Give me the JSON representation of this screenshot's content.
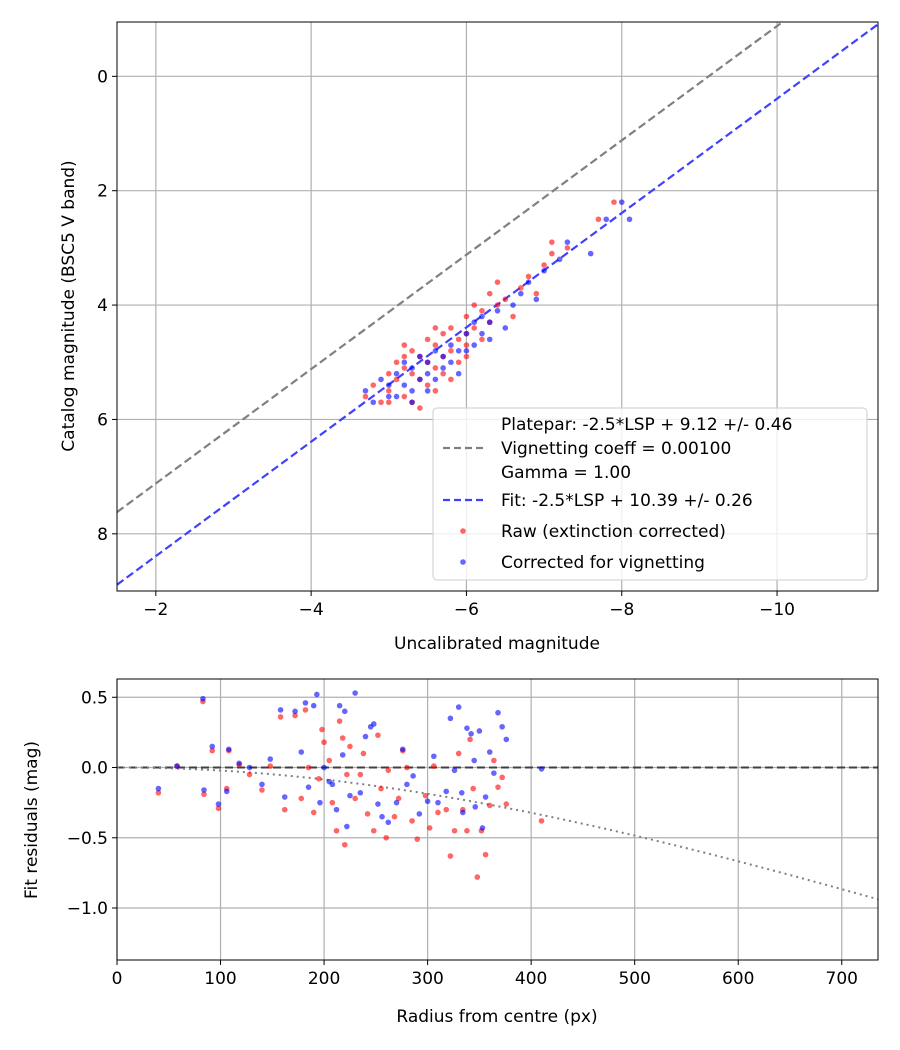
{
  "chart_data": [
    {
      "type": "scatter",
      "xlabel": "Uncalibrated magnitude",
      "ylabel": "Catalog magnitude (BSC5 V band)",
      "xlim": [
        -1.5,
        -11.3
      ],
      "ylim": [
        9.0,
        -0.95
      ],
      "x_inverted": true,
      "y_inverted": true,
      "xticks": [
        -2,
        -4,
        -6,
        -8,
        -10
      ],
      "xtick_labels": [
        "−2",
        "−4",
        "−6",
        "−8",
        "−10"
      ],
      "yticks": [
        0,
        2,
        4,
        6,
        8
      ],
      "ytick_labels": [
        "0",
        "2",
        "4",
        "6",
        "8"
      ],
      "grid": true,
      "legend_position": "bottom-right",
      "legend": [
        {
          "label": "Platepar: -2.5*LSP + 9.12 +/- 0.46",
          "kind": "none"
        },
        {
          "label": "Vignetting coeff = 0.00100",
          "kind": "dash",
          "color": "#808080"
        },
        {
          "label": "Gamma = 1.00",
          "kind": "none"
        },
        {
          "label": "Fit: -2.5*LSP + 10.39 +/- 0.26",
          "kind": "dash",
          "color": "#4040ff"
        },
        {
          "label": "Raw (extinction corrected)",
          "kind": "dot",
          "color": "#ff0000"
        },
        {
          "label": "Corrected for vignetting",
          "kind": "dot",
          "color": "#0000ff"
        }
      ],
      "lines": [
        {
          "slope": 1,
          "intercept": 9.12,
          "color": "#808080",
          "style": "dashed"
        },
        {
          "slope": 1,
          "intercept": 10.39,
          "color": "#4040ff",
          "style": "dashed"
        }
      ],
      "series": [
        {
          "color": "#ff0000",
          "points": [
            [
              -4.7,
              5.6
            ],
            [
              -4.8,
              5.4
            ],
            [
              -4.9,
              5.7
            ],
            [
              -5.0,
              5.2
            ],
            [
              -5.0,
              5.5
            ],
            [
              -5.1,
              5.0
            ],
            [
              -5.1,
              5.3
            ],
            [
              -5.2,
              4.9
            ],
            [
              -5.2,
              5.1
            ],
            [
              -5.2,
              5.6
            ],
            [
              -5.3,
              4.8
            ],
            [
              -5.3,
              5.2
            ],
            [
              -5.3,
              5.7
            ],
            [
              -5.4,
              4.9
            ],
            [
              -5.4,
              5.3
            ],
            [
              -5.5,
              4.6
            ],
            [
              -5.5,
              5.0
            ],
            [
              -5.5,
              5.4
            ],
            [
              -5.6,
              4.7
            ],
            [
              -5.6,
              5.1
            ],
            [
              -5.6,
              5.5
            ],
            [
              -5.7,
              4.5
            ],
            [
              -5.7,
              4.9
            ],
            [
              -5.7,
              5.2
            ],
            [
              -5.8,
              4.4
            ],
            [
              -5.8,
              4.8
            ],
            [
              -5.8,
              5.3
            ],
            [
              -5.9,
              4.6
            ],
            [
              -5.9,
              5.0
            ],
            [
              -6.0,
              4.2
            ],
            [
              -6.0,
              4.5
            ],
            [
              -6.0,
              4.9
            ],
            [
              -6.1,
              4.0
            ],
            [
              -6.1,
              4.4
            ],
            [
              -6.2,
              4.1
            ],
            [
              -6.2,
              4.6
            ],
            [
              -6.3,
              3.8
            ],
            [
              -6.3,
              4.3
            ],
            [
              -6.4,
              4.0
            ],
            [
              -6.5,
              3.9
            ],
            [
              -6.6,
              4.2
            ],
            [
              -6.7,
              3.7
            ],
            [
              -6.8,
              3.5
            ],
            [
              -6.9,
              3.8
            ],
            [
              -7.0,
              3.3
            ],
            [
              -7.1,
              3.1
            ],
            [
              -7.1,
              2.9
            ],
            [
              -7.3,
              3.0
            ],
            [
              -7.7,
              2.5
            ],
            [
              -7.9,
              2.2
            ],
            [
              -5.0,
              5.7
            ],
            [
              -5.4,
              5.8
            ],
            [
              -5.2,
              4.7
            ],
            [
              -5.6,
              4.4
            ],
            [
              -6.4,
              3.6
            ],
            [
              -6.0,
              4.7
            ]
          ]
        },
        {
          "color": "#0000ff",
          "points": [
            [
              -4.7,
              5.5
            ],
            [
              -4.8,
              5.7
            ],
            [
              -4.9,
              5.3
            ],
            [
              -5.0,
              5.4
            ],
            [
              -5.1,
              5.2
            ],
            [
              -5.1,
              5.6
            ],
            [
              -5.2,
              5.0
            ],
            [
              -5.2,
              5.4
            ],
            [
              -5.3,
              5.1
            ],
            [
              -5.3,
              5.5
            ],
            [
              -5.4,
              4.9
            ],
            [
              -5.4,
              5.3
            ],
            [
              -5.5,
              5.0
            ],
            [
              -5.5,
              5.2
            ],
            [
              -5.6,
              4.8
            ],
            [
              -5.6,
              5.3
            ],
            [
              -5.7,
              4.9
            ],
            [
              -5.7,
              5.1
            ],
            [
              -5.8,
              4.7
            ],
            [
              -5.8,
              5.0
            ],
            [
              -5.9,
              4.8
            ],
            [
              -5.9,
              5.2
            ],
            [
              -6.0,
              4.5
            ],
            [
              -6.0,
              4.8
            ],
            [
              -6.1,
              4.3
            ],
            [
              -6.1,
              4.7
            ],
            [
              -6.2,
              4.2
            ],
            [
              -6.2,
              4.5
            ],
            [
              -6.3,
              4.3
            ],
            [
              -6.4,
              4.1
            ],
            [
              -6.5,
              4.4
            ],
            [
              -6.6,
              4.0
            ],
            [
              -6.7,
              3.8
            ],
            [
              -6.8,
              3.6
            ],
            [
              -6.9,
              3.9
            ],
            [
              -7.0,
              3.4
            ],
            [
              -7.2,
              3.2
            ],
            [
              -7.3,
              2.9
            ],
            [
              -7.6,
              3.1
            ],
            [
              -7.8,
              2.5
            ],
            [
              -8.0,
              2.2
            ],
            [
              -8.1,
              2.5
            ],
            [
              -5.0,
              5.6
            ],
            [
              -5.3,
              5.7
            ],
            [
              -6.3,
              4.6
            ],
            [
              -5.5,
              5.5
            ]
          ]
        }
      ]
    },
    {
      "type": "scatter",
      "xlabel": "Radius from centre (px)",
      "ylabel": "Fit residuals (mag)",
      "xlim": [
        0,
        735
      ],
      "ylim": [
        -1.37,
        0.63
      ],
      "xticks": [
        0,
        100,
        200,
        300,
        400,
        500,
        600,
        700
      ],
      "xtick_labels": [
        "0",
        "100",
        "200",
        "300",
        "400",
        "500",
        "600",
        "700"
      ],
      "yticks": [
        0.5,
        0.0,
        -0.5,
        -1.0
      ],
      "ytick_labels": [
        "0.5",
        "0.0",
        "−0.5",
        "−1.0"
      ],
      "grid": true,
      "lines": [
        {
          "kind": "hline",
          "y": 0,
          "color": "#404040",
          "style": "dashed"
        },
        {
          "kind": "vignetting",
          "coeff": 0.001,
          "color": "#808080",
          "style": "dotted"
        }
      ],
      "series": [
        {
          "color": "#ff0000",
          "points": [
            [
              40,
              -0.18
            ],
            [
              58,
              0.01
            ],
            [
              83,
              0.47
            ],
            [
              84,
              -0.19
            ],
            [
              92,
              0.12
            ],
            [
              98,
              -0.29
            ],
            [
              106,
              -0.15
            ],
            [
              108,
              0.12
            ],
            [
              118,
              0.02
            ],
            [
              128,
              -0.05
            ],
            [
              140,
              -0.16
            ],
            [
              148,
              0.01
            ],
            [
              158,
              0.36
            ],
            [
              162,
              -0.3
            ],
            [
              172,
              0.37
            ],
            [
              178,
              -0.22
            ],
            [
              182,
              0.41
            ],
            [
              185,
              0.0
            ],
            [
              190,
              -0.32
            ],
            [
              195,
              -0.08
            ],
            [
              198,
              0.27
            ],
            [
              200,
              0.18
            ],
            [
              205,
              0.05
            ],
            [
              208,
              -0.25
            ],
            [
              212,
              -0.45
            ],
            [
              215,
              0.33
            ],
            [
              218,
              0.21
            ],
            [
              220,
              -0.55
            ],
            [
              222,
              -0.05
            ],
            [
              225,
              0.15
            ],
            [
              230,
              -0.22
            ],
            [
              235,
              -0.05
            ],
            [
              238,
              0.1
            ],
            [
              242,
              -0.33
            ],
            [
              248,
              -0.45
            ],
            [
              252,
              0.23
            ],
            [
              255,
              -0.15
            ],
            [
              260,
              -0.5
            ],
            [
              262,
              -0.02
            ],
            [
              268,
              -0.35
            ],
            [
              272,
              -0.22
            ],
            [
              276,
              0.12
            ],
            [
              280,
              0.0
            ],
            [
              285,
              -0.38
            ],
            [
              290,
              -0.51
            ],
            [
              298,
              -0.2
            ],
            [
              302,
              -0.43
            ],
            [
              306,
              0.01
            ],
            [
              310,
              -0.32
            ],
            [
              318,
              -0.3
            ],
            [
              322,
              -0.63
            ],
            [
              326,
              -0.45
            ],
            [
              330,
              0.1
            ],
            [
              334,
              -0.3
            ],
            [
              338,
              -0.45
            ],
            [
              341,
              0.2
            ],
            [
              344,
              -0.15
            ],
            [
              348,
              -0.78
            ],
            [
              352,
              -0.45
            ],
            [
              356,
              -0.62
            ],
            [
              360,
              -0.27
            ],
            [
              364,
              0.05
            ],
            [
              368,
              -0.14
            ],
            [
              372,
              -0.07
            ],
            [
              376,
              -0.26
            ],
            [
              410,
              -0.38
            ]
          ]
        },
        {
          "color": "#0000ff",
          "points": [
            [
              40,
              -0.15
            ],
            [
              58,
              0.01
            ],
            [
              83,
              0.49
            ],
            [
              84,
              -0.16
            ],
            [
              92,
              0.15
            ],
            [
              98,
              -0.26
            ],
            [
              106,
              -0.17
            ],
            [
              108,
              0.13
            ],
            [
              118,
              0.03
            ],
            [
              128,
              0.0
            ],
            [
              140,
              -0.12
            ],
            [
              148,
              0.06
            ],
            [
              158,
              0.41
            ],
            [
              162,
              -0.21
            ],
            [
              172,
              0.4
            ],
            [
              178,
              0.11
            ],
            [
              182,
              0.46
            ],
            [
              185,
              -0.14
            ],
            [
              190,
              0.44
            ],
            [
              193,
              0.52
            ],
            [
              196,
              -0.25
            ],
            [
              200,
              0.0
            ],
            [
              205,
              -0.1
            ],
            [
              208,
              -0.12
            ],
            [
              212,
              -0.3
            ],
            [
              215,
              0.44
            ],
            [
              218,
              0.09
            ],
            [
              220,
              0.4
            ],
            [
              222,
              -0.42
            ],
            [
              225,
              -0.2
            ],
            [
              230,
              0.53
            ],
            [
              235,
              -0.18
            ],
            [
              240,
              0.22
            ],
            [
              245,
              0.29
            ],
            [
              248,
              0.31
            ],
            [
              252,
              -0.26
            ],
            [
              256,
              -0.35
            ],
            [
              262,
              -0.39
            ],
            [
              270,
              -0.25
            ],
            [
              276,
              0.13
            ],
            [
              280,
              -0.12
            ],
            [
              286,
              -0.06
            ],
            [
              292,
              -0.33
            ],
            [
              300,
              -0.24
            ],
            [
              306,
              0.08
            ],
            [
              310,
              -0.25
            ],
            [
              318,
              -0.17
            ],
            [
              322,
              0.35
            ],
            [
              326,
              -0.02
            ],
            [
              330,
              0.43
            ],
            [
              334,
              -0.32
            ],
            [
              338,
              0.28
            ],
            [
              342,
              0.24
            ],
            [
              346,
              -0.28
            ],
            [
              350,
              0.26
            ],
            [
              353,
              -0.43
            ],
            [
              356,
              -0.21
            ],
            [
              360,
              0.11
            ],
            [
              364,
              -0.04
            ],
            [
              368,
              0.39
            ],
            [
              372,
              0.29
            ],
            [
              376,
              0.2
            ],
            [
              410,
              -0.01
            ],
            [
              345,
              0.05
            ],
            [
              333,
              -0.18
            ]
          ]
        }
      ]
    }
  ]
}
